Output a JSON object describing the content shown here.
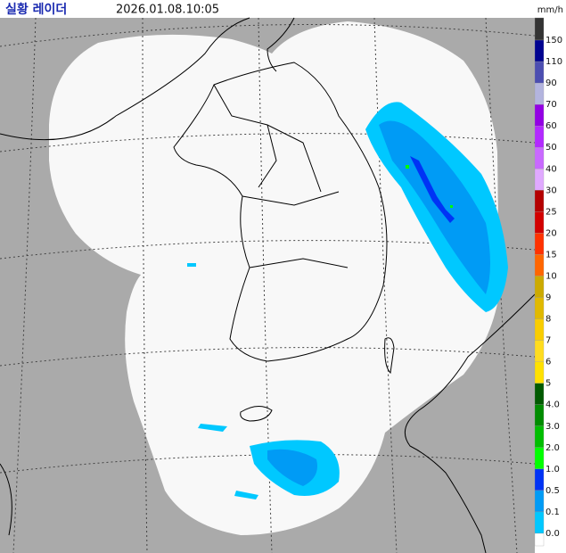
{
  "header": {
    "title": "실황 레이더",
    "timestamp": "2026.01.08.10:05"
  },
  "legend": {
    "unit": "mm/h",
    "labels": [
      "150",
      "110",
      "90",
      "70",
      "60",
      "50",
      "40",
      "30",
      "25",
      "20",
      "15",
      "10",
      "9",
      "8",
      "7",
      "6",
      "5",
      "4.0",
      "3.0",
      "2.0",
      "1.0",
      "0.5",
      "0.1",
      "0.0"
    ],
    "colors": [
      "#333333",
      "#000390",
      "#4c4eb1",
      "#b3b4de",
      "#9300e4",
      "#b329ff",
      "#c969ff",
      "#e0a9ff",
      "#b40000",
      "#d20000",
      "#ff3200",
      "#ff6600",
      "#ccaa00",
      "#e0b900",
      "#f9cd00",
      "#ffdc1f",
      "#ffe100",
      "#005a00",
      "#008c00",
      "#00be00",
      "#00ff00",
      "#0033f5",
      "#009bf5",
      "#00c8ff",
      "#ffffff"
    ]
  }
}
